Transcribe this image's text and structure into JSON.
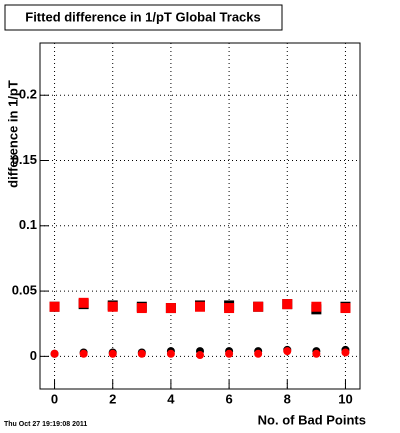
{
  "chart_data": {
    "type": "scatter",
    "title": "Fitted difference in 1/pT  Global Tracks",
    "x_label": "No. of Bad Points",
    "y_label": "difference in 1/pT",
    "timestamp": "Thu Oct 27 19:19:08 2011",
    "x": [
      0,
      1,
      2,
      3,
      4,
      5,
      6,
      7,
      8,
      9,
      10
    ],
    "series": [
      {
        "color": "#000000",
        "marker": "square",
        "values": [
          0.038,
          0.04,
          0.039,
          0.038,
          0.037,
          0.039,
          0.039,
          0.038,
          0.04,
          0.036,
          0.038
        ]
      },
      {
        "color": "#ff0000",
        "marker": "square",
        "values": [
          0.038,
          0.041,
          0.038,
          0.037,
          0.037,
          0.038,
          0.037,
          0.038,
          0.04,
          0.038,
          0.037
        ]
      },
      {
        "color": "#000000",
        "marker": "circle",
        "values": [
          0.002,
          0.003,
          0.003,
          0.003,
          0.004,
          0.004,
          0.004,
          0.004,
          0.005,
          0.004,
          0.005
        ]
      },
      {
        "color": "#ff0000",
        "marker": "circle",
        "values": [
          0.002,
          0.002,
          0.002,
          0.002,
          0.002,
          0.001,
          0.002,
          0.002,
          0.004,
          0.002,
          0.003
        ]
      }
    ],
    "xlim": [
      -0.5,
      10.5
    ],
    "xticks": [
      0,
      2,
      4,
      6,
      8,
      10
    ],
    "ylim": [
      -0.025,
      0.24
    ],
    "yticks": [
      0,
      0.05,
      0.1,
      0.15,
      0.2
    ],
    "grid": true
  }
}
